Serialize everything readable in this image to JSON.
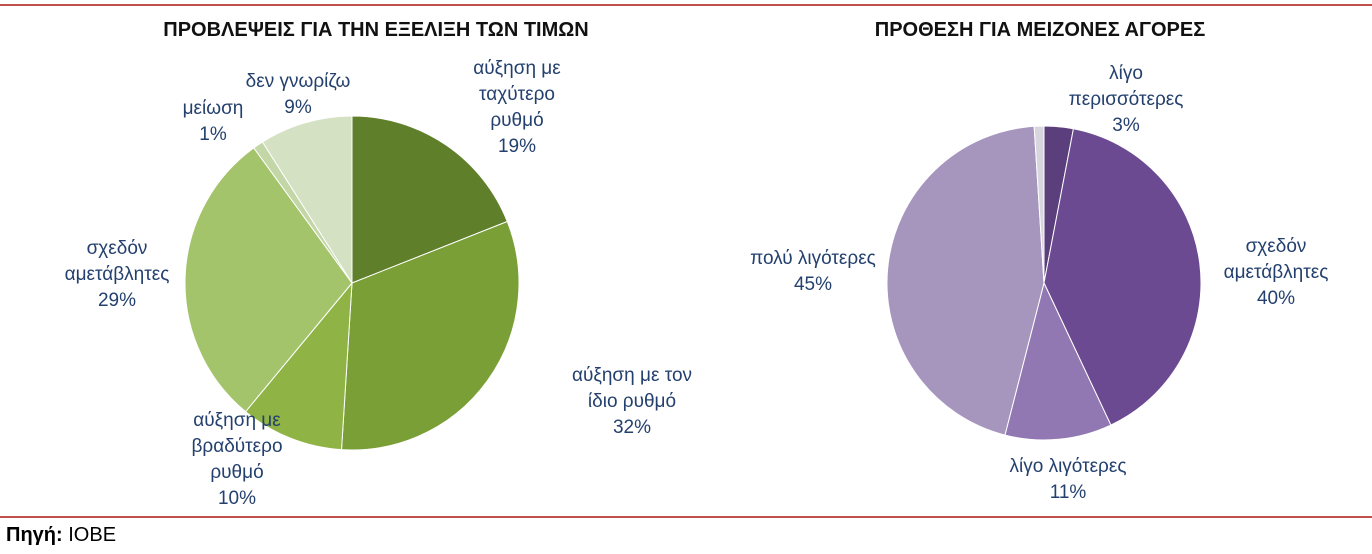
{
  "chart_data": [
    {
      "type": "pie",
      "title": "ΠΡΟΒΛΕΨΕΙΣ ΓΙΑ ΤΗΝ ΕΞΕΛΙΞΗ ΤΩΝ ΤΙΜΩΝ",
      "categories": [
        "αύξηση με ταχύτερο ρυθμό",
        "αύξηση με τον ίδιο ρυθμό",
        "αύξηση με βραδύτερο ρυθμό",
        "σχεδόν αμετάβλητες",
        "μείωση",
        "δεν γνωρίζω"
      ],
      "values": [
        19,
        32,
        10,
        29,
        1,
        9
      ],
      "value_labels": [
        "19%",
        "32%",
        "10%",
        "29%",
        "1%",
        "9%"
      ],
      "colors": [
        "#5f7f2b",
        "#7a9f37",
        "#8fb445",
        "#a4c46c",
        "#c3d6a6",
        "#d5e1c3"
      ]
    },
    {
      "type": "pie",
      "title": "ΠΡΟΘΕΣΗ ΓΙΑ ΜΕΙΖΟΝΕΣ ΑΓΟΡΕΣ",
      "categories": [
        "λίγο περισσότερες",
        "σχεδόν αμετάβλητες",
        "λίγο λιγότερες",
        "πολύ λιγότερες",
        null
      ],
      "values": [
        3,
        40,
        11,
        45,
        1
      ],
      "value_labels": [
        "3%",
        "40%",
        "11%",
        "45%",
        null
      ],
      "colors": [
        "#5b3f7c",
        "#6c4a92",
        "#9278b2",
        "#a696bd",
        "#d9d5df"
      ]
    }
  ],
  "source": {
    "label": "Πηγή:",
    "text": "ΙΟΒΕ"
  }
}
